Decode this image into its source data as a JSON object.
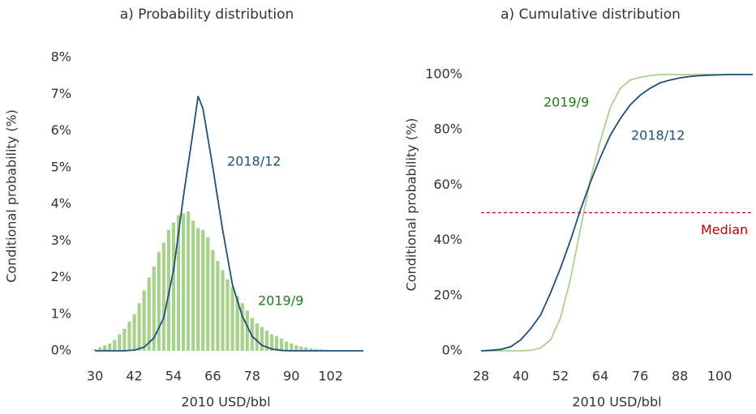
{
  "chart_data": [
    {
      "type": "bar",
      "title": "a) Probability distribution",
      "xlabel": "2010 USD/bbl",
      "ylabel": "Conditional probability (%)",
      "xlim": [
        27,
        113
      ],
      "xticks": [
        30,
        42,
        54,
        66,
        78,
        90,
        102
      ],
      "ylim": [
        0,
        8
      ],
      "yticks": [
        {
          "value": 0,
          "label": "0%"
        },
        {
          "value": 1,
          "label": "1%"
        },
        {
          "value": 2,
          "label": "2%"
        },
        {
          "value": 3,
          "label": "3%"
        },
        {
          "value": 4,
          "label": "4%"
        },
        {
          "value": 5,
          "label": "5%"
        },
        {
          "value": 6,
          "label": "6%"
        },
        {
          "value": 7,
          "label": "7%"
        },
        {
          "value": 8,
          "label": "8%"
        }
      ],
      "series": [
        {
          "name": "2019/9",
          "type": "bar",
          "color": "#a9d18e",
          "x": [
            30,
            31.5,
            33,
            34.5,
            36,
            37.5,
            39,
            40.5,
            42,
            43.5,
            45,
            46.5,
            48,
            49.5,
            51,
            52.5,
            54,
            55.5,
            57,
            58.5,
            60,
            61.5,
            63,
            64.5,
            66,
            67.5,
            69,
            70.5,
            72,
            73.5,
            75,
            76.5,
            78,
            79.5,
            81,
            82.5,
            84,
            85.5,
            87,
            88.5,
            90,
            91.5,
            93,
            94.5,
            96,
            97.5,
            99,
            100.5,
            102,
            103.5
          ],
          "values": [
            0.05,
            0.1,
            0.15,
            0.2,
            0.3,
            0.45,
            0.6,
            0.8,
            1.0,
            1.3,
            1.65,
            2.0,
            2.3,
            2.7,
            2.95,
            3.3,
            3.5,
            3.7,
            3.75,
            3.8,
            3.55,
            3.35,
            3.3,
            3.1,
            2.75,
            2.45,
            2.2,
            1.95,
            1.75,
            1.5,
            1.3,
            1.1,
            0.9,
            0.75,
            0.65,
            0.55,
            0.45,
            0.4,
            0.33,
            0.25,
            0.2,
            0.15,
            0.12,
            0.1,
            0.07,
            0.05,
            0.04,
            0.03,
            0.02,
            0.01
          ]
        },
        {
          "name": "2018/12",
          "type": "line",
          "color": "#1f4e79",
          "x": [
            30,
            33,
            36,
            39,
            42,
            45,
            48,
            51,
            54,
            57,
            60,
            61.5,
            63,
            66,
            69,
            72,
            75,
            78,
            81,
            84,
            87,
            90,
            96,
            102,
            108,
            112
          ],
          "values": [
            0,
            0,
            0,
            0,
            0.02,
            0.1,
            0.35,
            0.9,
            2.2,
            4.2,
            6.0,
            6.95,
            6.6,
            5.0,
            3.3,
            1.8,
            0.95,
            0.4,
            0.15,
            0.05,
            0.01,
            0,
            0,
            0,
            0,
            0
          ]
        }
      ]
    },
    {
      "type": "line",
      "title": "a) Cumulative distribution",
      "xlabel": "2010 USD/bbl",
      "ylabel": "Conditional probability (%)",
      "xlim": [
        28,
        110
      ],
      "xticks": [
        28,
        40,
        52,
        64,
        76,
        88,
        100
      ],
      "ylim": [
        0,
        100
      ],
      "yticks": [
        {
          "value": 0,
          "label": "0%"
        },
        {
          "value": 20,
          "label": "20%"
        },
        {
          "value": 40,
          "label": "40%"
        },
        {
          "value": 60,
          "label": "60%"
        },
        {
          "value": 80,
          "label": "80%"
        },
        {
          "value": 100,
          "label": "100%"
        }
      ],
      "median": 50,
      "median_label": "Median",
      "median_color": "#c00000",
      "series": [
        {
          "name": "2019/9",
          "type": "line",
          "color": "#a9d18e",
          "x": [
            28,
            31,
            34,
            37,
            40,
            43,
            46,
            49,
            52,
            55,
            58,
            61,
            64,
            67,
            70,
            73,
            76,
            79,
            82,
            85,
            88,
            91,
            94,
            97,
            100,
            103,
            106,
            110
          ],
          "values": [
            0,
            0,
            0,
            0,
            0,
            0.2,
            1,
            4,
            12,
            26,
            44,
            62,
            76,
            88,
            95,
            98,
            99,
            99.6,
            100,
            100,
            100,
            100,
            100,
            100,
            100,
            100,
            100,
            100
          ]
        },
        {
          "name": "2018/12",
          "type": "line",
          "color": "#1f4e79",
          "x": [
            28,
            31,
            34,
            37,
            40,
            43,
            46,
            49,
            52,
            55,
            58,
            61,
            64,
            67,
            70,
            73,
            76,
            79,
            82,
            85,
            88,
            91,
            94,
            97,
            100,
            103,
            106,
            110
          ],
          "values": [
            0,
            0.2,
            0.5,
            1.5,
            4,
            8,
            13,
            21,
            30,
            40,
            51,
            61,
            70,
            78,
            84,
            89,
            92.5,
            95,
            97,
            98,
            98.8,
            99.3,
            99.6,
            99.8,
            99.9,
            100,
            100,
            100
          ]
        }
      ]
    }
  ]
}
